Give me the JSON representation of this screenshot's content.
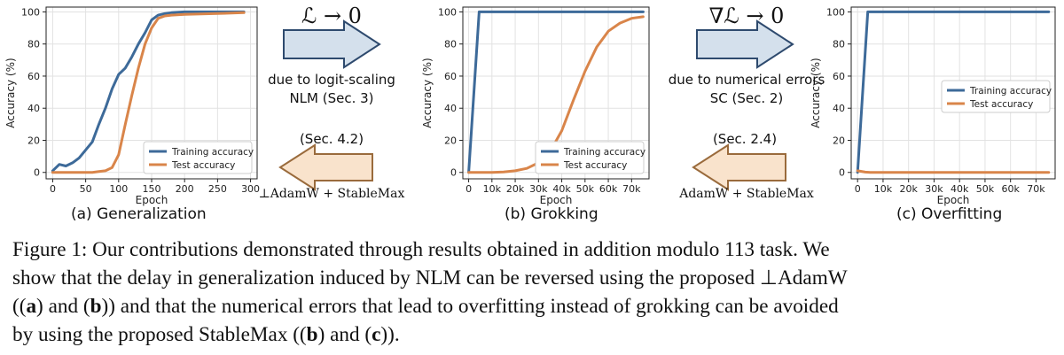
{
  "figure": {
    "caption_label": "Figure 1:",
    "caption_lines": [
      [
        "Our contributions demonstrated through results obtained in addition modulo 113 task. We"
      ],
      [
        "show that the delay in generalization induced by NLM can be reversed using the proposed ⊥AdamW"
      ],
      [
        "((",
        "a",
        ") and (",
        "b",
        ")) and that the numerical errors that lead to overfitting instead of grokking can be avoided"
      ],
      [
        "by using the proposed StableMax ((",
        "b",
        ") and (",
        "c",
        "))."
      ]
    ]
  },
  "arrow_left": {
    "top_math": "ℒ → 0",
    "mid_line1": "due to logit-scaling",
    "mid_line2": "NLM (Sec. 3)",
    "sec": "(Sec. 4.2)",
    "bottom_math": "⊥AdamW + StableMax"
  },
  "arrow_right": {
    "top_math": "∇ℒ → 0",
    "mid_line1": "due to numerical errors",
    "mid_line2": "SC (Sec. 2)",
    "sec": "(Sec. 2.4)",
    "bottom_math": "AdamW + StableMax"
  },
  "colors": {
    "training": "#3d6a99",
    "test": "#d9854a",
    "arrow_right_fill": "#d4e0ec",
    "arrow_right_stroke": "#2e4a6e",
    "arrow_left_fill": "#f9e3cc",
    "arrow_left_stroke": "#9a6b3c"
  },
  "chart_data": [
    {
      "type": "line",
      "subcaption": "(a) Generalization",
      "xlabel": "Epoch",
      "ylabel": "Accuracy (%)",
      "xlim": [
        -10,
        310
      ],
      "ylim": [
        -4,
        103
      ],
      "xticks": [
        0,
        50,
        100,
        150,
        200,
        250,
        300
      ],
      "xtick_labels": [
        "0",
        "50",
        "100",
        "150",
        "200",
        "250",
        "300"
      ],
      "yticks": [
        0,
        20,
        40,
        60,
        80,
        100
      ],
      "grid": true,
      "legend": "bottom-right",
      "series": [
        {
          "name": "Training accuracy",
          "color": "training",
          "x": [
            0,
            10,
            20,
            30,
            40,
            50,
            60,
            70,
            80,
            90,
            100,
            110,
            120,
            130,
            140,
            150,
            160,
            170,
            180,
            200,
            250,
            290
          ],
          "y": [
            1,
            5,
            4,
            6,
            9,
            14,
            19,
            30,
            40,
            52,
            61,
            65,
            72,
            80,
            87,
            95,
            98,
            99,
            99.5,
            100,
            100,
            100
          ]
        },
        {
          "name": "Test accuracy",
          "color": "test",
          "x": [
            0,
            20,
            40,
            60,
            70,
            80,
            90,
            100,
            110,
            120,
            130,
            140,
            150,
            160,
            170,
            180,
            200,
            250,
            290
          ],
          "y": [
            0,
            0,
            0,
            0,
            0.5,
            1,
            3,
            11,
            30,
            48,
            65,
            80,
            90,
            96,
            97.5,
            98,
            98.5,
            99,
            99.5
          ]
        }
      ]
    },
    {
      "type": "line",
      "subcaption": "(b) Grokking",
      "xlabel": "Epoch",
      "ylabel": "Accuracy (%)",
      "xlim": [
        -2500,
        77500
      ],
      "ylim": [
        -4,
        103
      ],
      "xticks": [
        0,
        10000,
        20000,
        30000,
        40000,
        50000,
        60000,
        70000
      ],
      "xtick_labels": [
        "0",
        "10k",
        "20k",
        "30k",
        "40k",
        "50k",
        "60k",
        "70k"
      ],
      "yticks": [
        0,
        20,
        40,
        60,
        80,
        100
      ],
      "grid": true,
      "legend": "bottom-right",
      "series": [
        {
          "name": "Training accuracy",
          "color": "training",
          "x": [
            0,
            4500,
            75000
          ],
          "y": [
            0,
            100,
            100
          ]
        },
        {
          "name": "Test accuracy",
          "color": "test",
          "x": [
            0,
            10000,
            15000,
            20000,
            25000,
            30000,
            35000,
            40000,
            45000,
            50000,
            55000,
            60000,
            65000,
            70000,
            75000
          ],
          "y": [
            0,
            0,
            0.3,
            1,
            2.5,
            6,
            13,
            26,
            45,
            63,
            78,
            88,
            93,
            96,
            97
          ]
        }
      ]
    },
    {
      "type": "line",
      "subcaption": "(c) Overfitting",
      "xlabel": "Epoch",
      "ylabel": "Accuracy (%)",
      "xlim": [
        -2500,
        77500
      ],
      "ylim": [
        -4,
        103
      ],
      "xticks": [
        0,
        10000,
        20000,
        30000,
        40000,
        50000,
        60000,
        70000
      ],
      "xtick_labels": [
        "0",
        "10k",
        "20k",
        "30k",
        "40k",
        "50k",
        "60k",
        "70k"
      ],
      "yticks": [
        0,
        20,
        40,
        60,
        80,
        100
      ],
      "grid": true,
      "legend": "middle-right",
      "series": [
        {
          "name": "Training accuracy",
          "color": "training",
          "x": [
            0,
            4000,
            75000
          ],
          "y": [
            0,
            100,
            100
          ]
        },
        {
          "name": "Test accuracy",
          "color": "test",
          "x": [
            0,
            3000,
            5000,
            75000
          ],
          "y": [
            1,
            0.2,
            0,
            0
          ]
        }
      ]
    }
  ]
}
